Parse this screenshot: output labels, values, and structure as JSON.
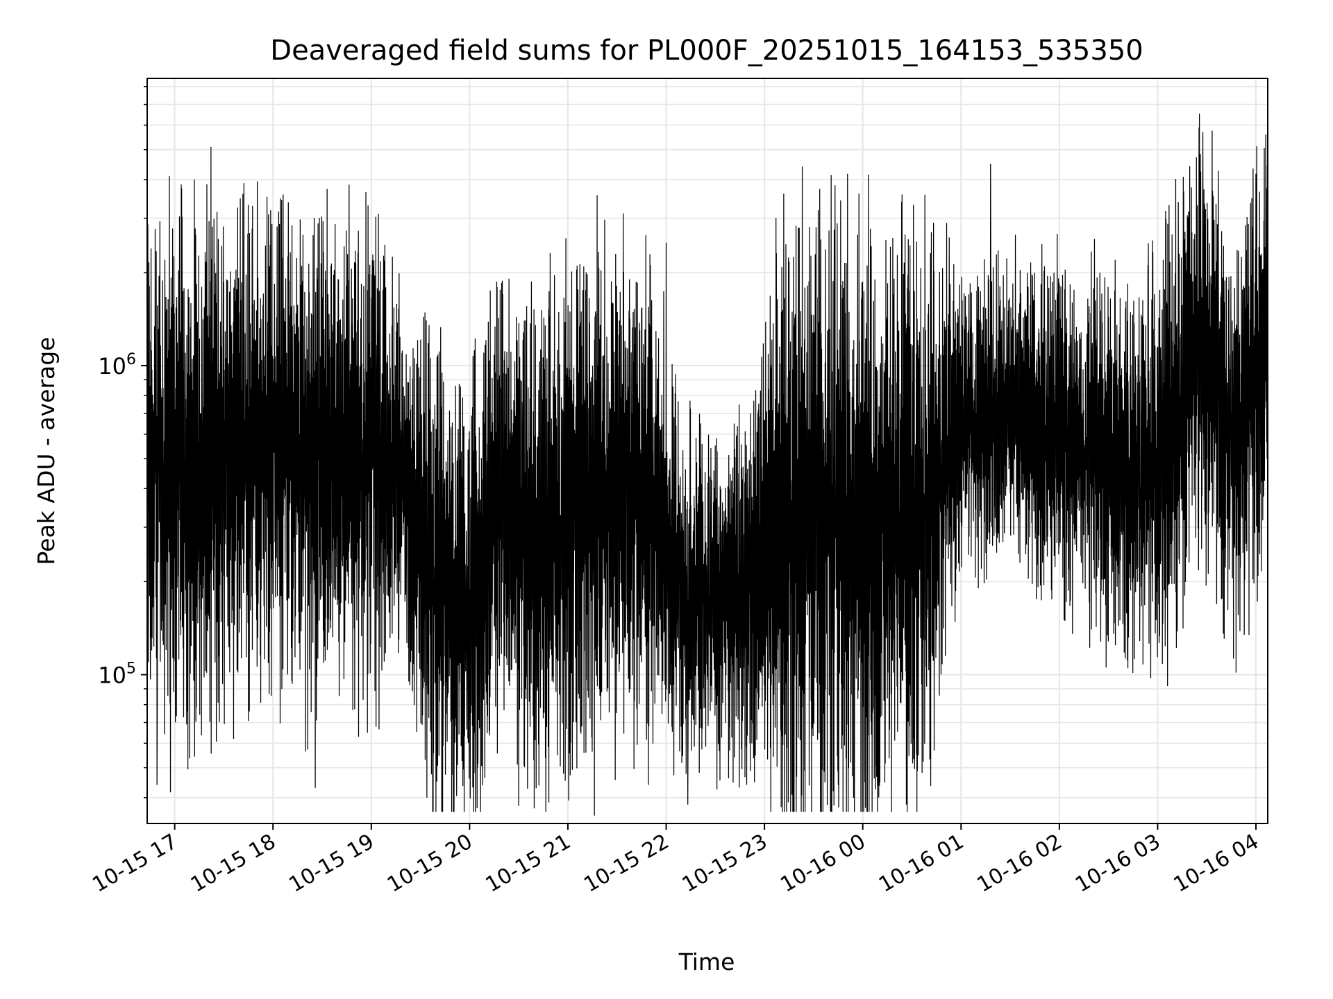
{
  "chart_data": {
    "type": "line",
    "title": "Deaveraged field sums for PL000F_20251015_164153_535350",
    "xlabel": "Time",
    "ylabel": "Peak ADU - average",
    "y_scale": "log",
    "ylim": [
      33000,
      8500000
    ],
    "xlim_hours_from_10_15_17": [
      -0.28,
      11.12
    ],
    "x_ticks": [
      {
        "label": "10-15 17",
        "hours": 0
      },
      {
        "label": "10-15 18",
        "hours": 1
      },
      {
        "label": "10-15 19",
        "hours": 2
      },
      {
        "label": "10-15 20",
        "hours": 3
      },
      {
        "label": "10-15 21",
        "hours": 4
      },
      {
        "label": "10-15 22",
        "hours": 5
      },
      {
        "label": "10-15 23",
        "hours": 6
      },
      {
        "label": "10-16 00",
        "hours": 7
      },
      {
        "label": "10-16 01",
        "hours": 8
      },
      {
        "label": "10-16 02",
        "hours": 9
      },
      {
        "label": "10-16 03",
        "hours": 10
      },
      {
        "label": "10-16 04",
        "hours": 11
      }
    ],
    "y_ticks": [
      {
        "base": "10",
        "exp": "5",
        "value": 100000
      },
      {
        "base": "10",
        "exp": "6",
        "value": 1000000
      }
    ],
    "grid": true,
    "line_color": "#000000",
    "series": [
      {
        "name": "Peak ADU - average",
        "envelope": [
          {
            "hours": -0.28,
            "median": 500000,
            "spread": 1.0
          },
          {
            "hours": 0.0,
            "median": 450000,
            "spread": 1.0
          },
          {
            "hours": 0.5,
            "median": 500000,
            "spread": 0.95
          },
          {
            "hours": 1.0,
            "median": 550000,
            "spread": 0.9
          },
          {
            "hours": 1.5,
            "median": 520000,
            "spread": 0.9
          },
          {
            "hours": 2.0,
            "median": 500000,
            "spread": 0.9
          },
          {
            "hours": 2.3,
            "median": 450000,
            "spread": 0.6
          },
          {
            "hours": 2.6,
            "median": 200000,
            "spread": 0.85
          },
          {
            "hours": 3.0,
            "median": 150000,
            "spread": 0.9
          },
          {
            "hours": 3.3,
            "median": 350000,
            "spread": 0.8
          },
          {
            "hours": 3.7,
            "median": 250000,
            "spread": 0.9
          },
          {
            "hours": 4.2,
            "median": 400000,
            "spread": 0.9
          },
          {
            "hours": 4.8,
            "median": 400000,
            "spread": 0.9
          },
          {
            "hours": 5.2,
            "median": 180000,
            "spread": 0.6
          },
          {
            "hours": 5.8,
            "median": 180000,
            "spread": 0.6
          },
          {
            "hours": 6.2,
            "median": 300000,
            "spread": 1.1
          },
          {
            "hours": 7.0,
            "median": 300000,
            "spread": 1.2
          },
          {
            "hours": 7.7,
            "median": 350000,
            "spread": 1.0
          },
          {
            "hours": 8.0,
            "median": 600000,
            "spread": 0.55
          },
          {
            "hours": 8.5,
            "median": 700000,
            "spread": 0.55
          },
          {
            "hours": 9.0,
            "median": 600000,
            "spread": 0.6
          },
          {
            "hours": 9.5,
            "median": 500000,
            "spread": 0.65
          },
          {
            "hours": 10.0,
            "median": 450000,
            "spread": 0.75
          },
          {
            "hours": 10.4,
            "median": 1100000,
            "spread": 0.8
          },
          {
            "hours": 10.8,
            "median": 600000,
            "spread": 0.8
          },
          {
            "hours": 11.12,
            "median": 1200000,
            "spread": 0.7
          }
        ],
        "peaks": [
          {
            "hours": 10.46,
            "value": 5700000
          },
          {
            "hours": 11.1,
            "value": 5600000
          },
          {
            "hours": 8.3,
            "value": 4500000
          },
          {
            "hours": 7.72,
            "value": 2900000
          },
          {
            "hours": 5.0,
            "value": 2500000
          },
          {
            "hours": -0.1,
            "value": 2200000
          }
        ],
        "troughs": [
          {
            "hours": 4.27,
            "value": 35000
          },
          {
            "hours": 5.22,
            "value": 38000
          },
          {
            "hours": -0.18,
            "value": 44000
          },
          {
            "hours": 1.43,
            "value": 43000
          },
          {
            "hours": 6.7,
            "value": 42000
          }
        ]
      }
    ]
  }
}
